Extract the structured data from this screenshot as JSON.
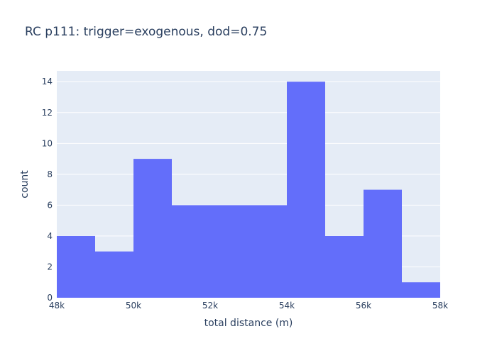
{
  "chart_data": {
    "type": "bar",
    "title": "RC p111: trigger=exogenous, dod=0.75",
    "xlabel": "total distance (m)",
    "ylabel": "count",
    "x_bin_edges": [
      48000,
      49000,
      50000,
      51000,
      52000,
      53000,
      54000,
      55000,
      56000,
      57000,
      58000
    ],
    "values": [
      4,
      3,
      9,
      6,
      6,
      6,
      14,
      4,
      7,
      1
    ],
    "xlim": [
      48000,
      58000
    ],
    "ylim": [
      0,
      14.7
    ],
    "x_ticks": [
      48000,
      50000,
      52000,
      54000,
      56000,
      58000
    ],
    "x_tick_labels": [
      "48k",
      "50k",
      "52k",
      "54k",
      "56k",
      "58k"
    ],
    "y_ticks": [
      0,
      2,
      4,
      6,
      8,
      10,
      12,
      14
    ],
    "y_tick_labels": [
      "0",
      "2",
      "4",
      "6",
      "8",
      "10",
      "12",
      "14"
    ],
    "grid": true,
    "colors": {
      "bar": "#636efa",
      "plot_bg": "#e5ecf6",
      "grid": "#ffffff",
      "text": "#2a3f5f"
    }
  }
}
